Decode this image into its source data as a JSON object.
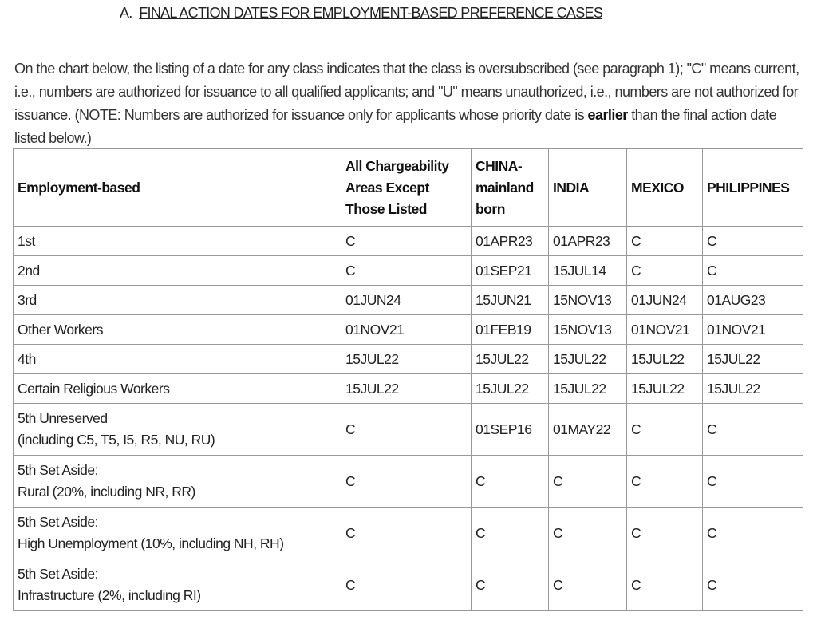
{
  "heading": {
    "prefix": "A.",
    "title": "FINAL ACTION DATES FOR EMPLOYMENT-BASED PREFERENCE CASES"
  },
  "intro": {
    "text_before": "On the chart below, the listing of a date for any class indicates that the class is oversubscribed (see paragraph 1); \"C\" means current, i.e., numbers are authorized for issuance to all qualified applicants; and \"U\" means unauthorized, i.e., numbers are not authorized for issuance. (NOTE: Numbers are authorized for issuance only for applicants whose priority date is ",
    "bold": "earlier",
    "text_after": " than the final action date listed below.)"
  },
  "table": {
    "headers": [
      "Employment-based",
      "All Chargeability Areas Except Those Listed",
      "CHINA-mainland born",
      "INDIA",
      "MEXICO",
      "PHILIPPINES"
    ],
    "rows": [
      {
        "category": "1st",
        "values": [
          "C",
          "01APR23",
          "01APR23",
          "C",
          "C"
        ]
      },
      {
        "category": "2nd",
        "values": [
          "C",
          "01SEP21",
          "15JUL14",
          "C",
          "C"
        ]
      },
      {
        "category": "3rd",
        "values": [
          "01JUN24",
          "15JUN21",
          "15NOV13",
          "01JUN24",
          "01AUG23"
        ]
      },
      {
        "category": "Other Workers",
        "values": [
          "01NOV21",
          "01FEB19",
          "15NOV13",
          "01NOV21",
          "01NOV21"
        ]
      },
      {
        "category": "4th",
        "values": [
          "15JUL22",
          "15JUL22",
          "15JUL22",
          "15JUL22",
          "15JUL22"
        ]
      },
      {
        "category": "Certain Religious Workers",
        "values": [
          "15JUL22",
          "15JUL22",
          "15JUL22",
          "15JUL22",
          "15JUL22"
        ]
      },
      {
        "category": "5th Unreserved",
        "category_line2": "(including C5, T5, I5, R5, NU, RU)",
        "values": [
          "C",
          "01SEP16",
          "01MAY22",
          "C",
          "C"
        ]
      },
      {
        "category": "5th Set Aside:",
        "category_line2": "Rural (20%, including NR, RR)",
        "values": [
          "C",
          "C",
          "C",
          "C",
          "C"
        ]
      },
      {
        "category": "5th Set Aside:",
        "category_line2": "High Unemployment (10%, including NH, RH)",
        "values": [
          "C",
          "C",
          "C",
          "C",
          "C"
        ]
      },
      {
        "category": "5th Set Aside:",
        "category_line2": "Infrastructure (2%, including RI)",
        "values": [
          "C",
          "C",
          "C",
          "C",
          "C"
        ]
      }
    ]
  }
}
